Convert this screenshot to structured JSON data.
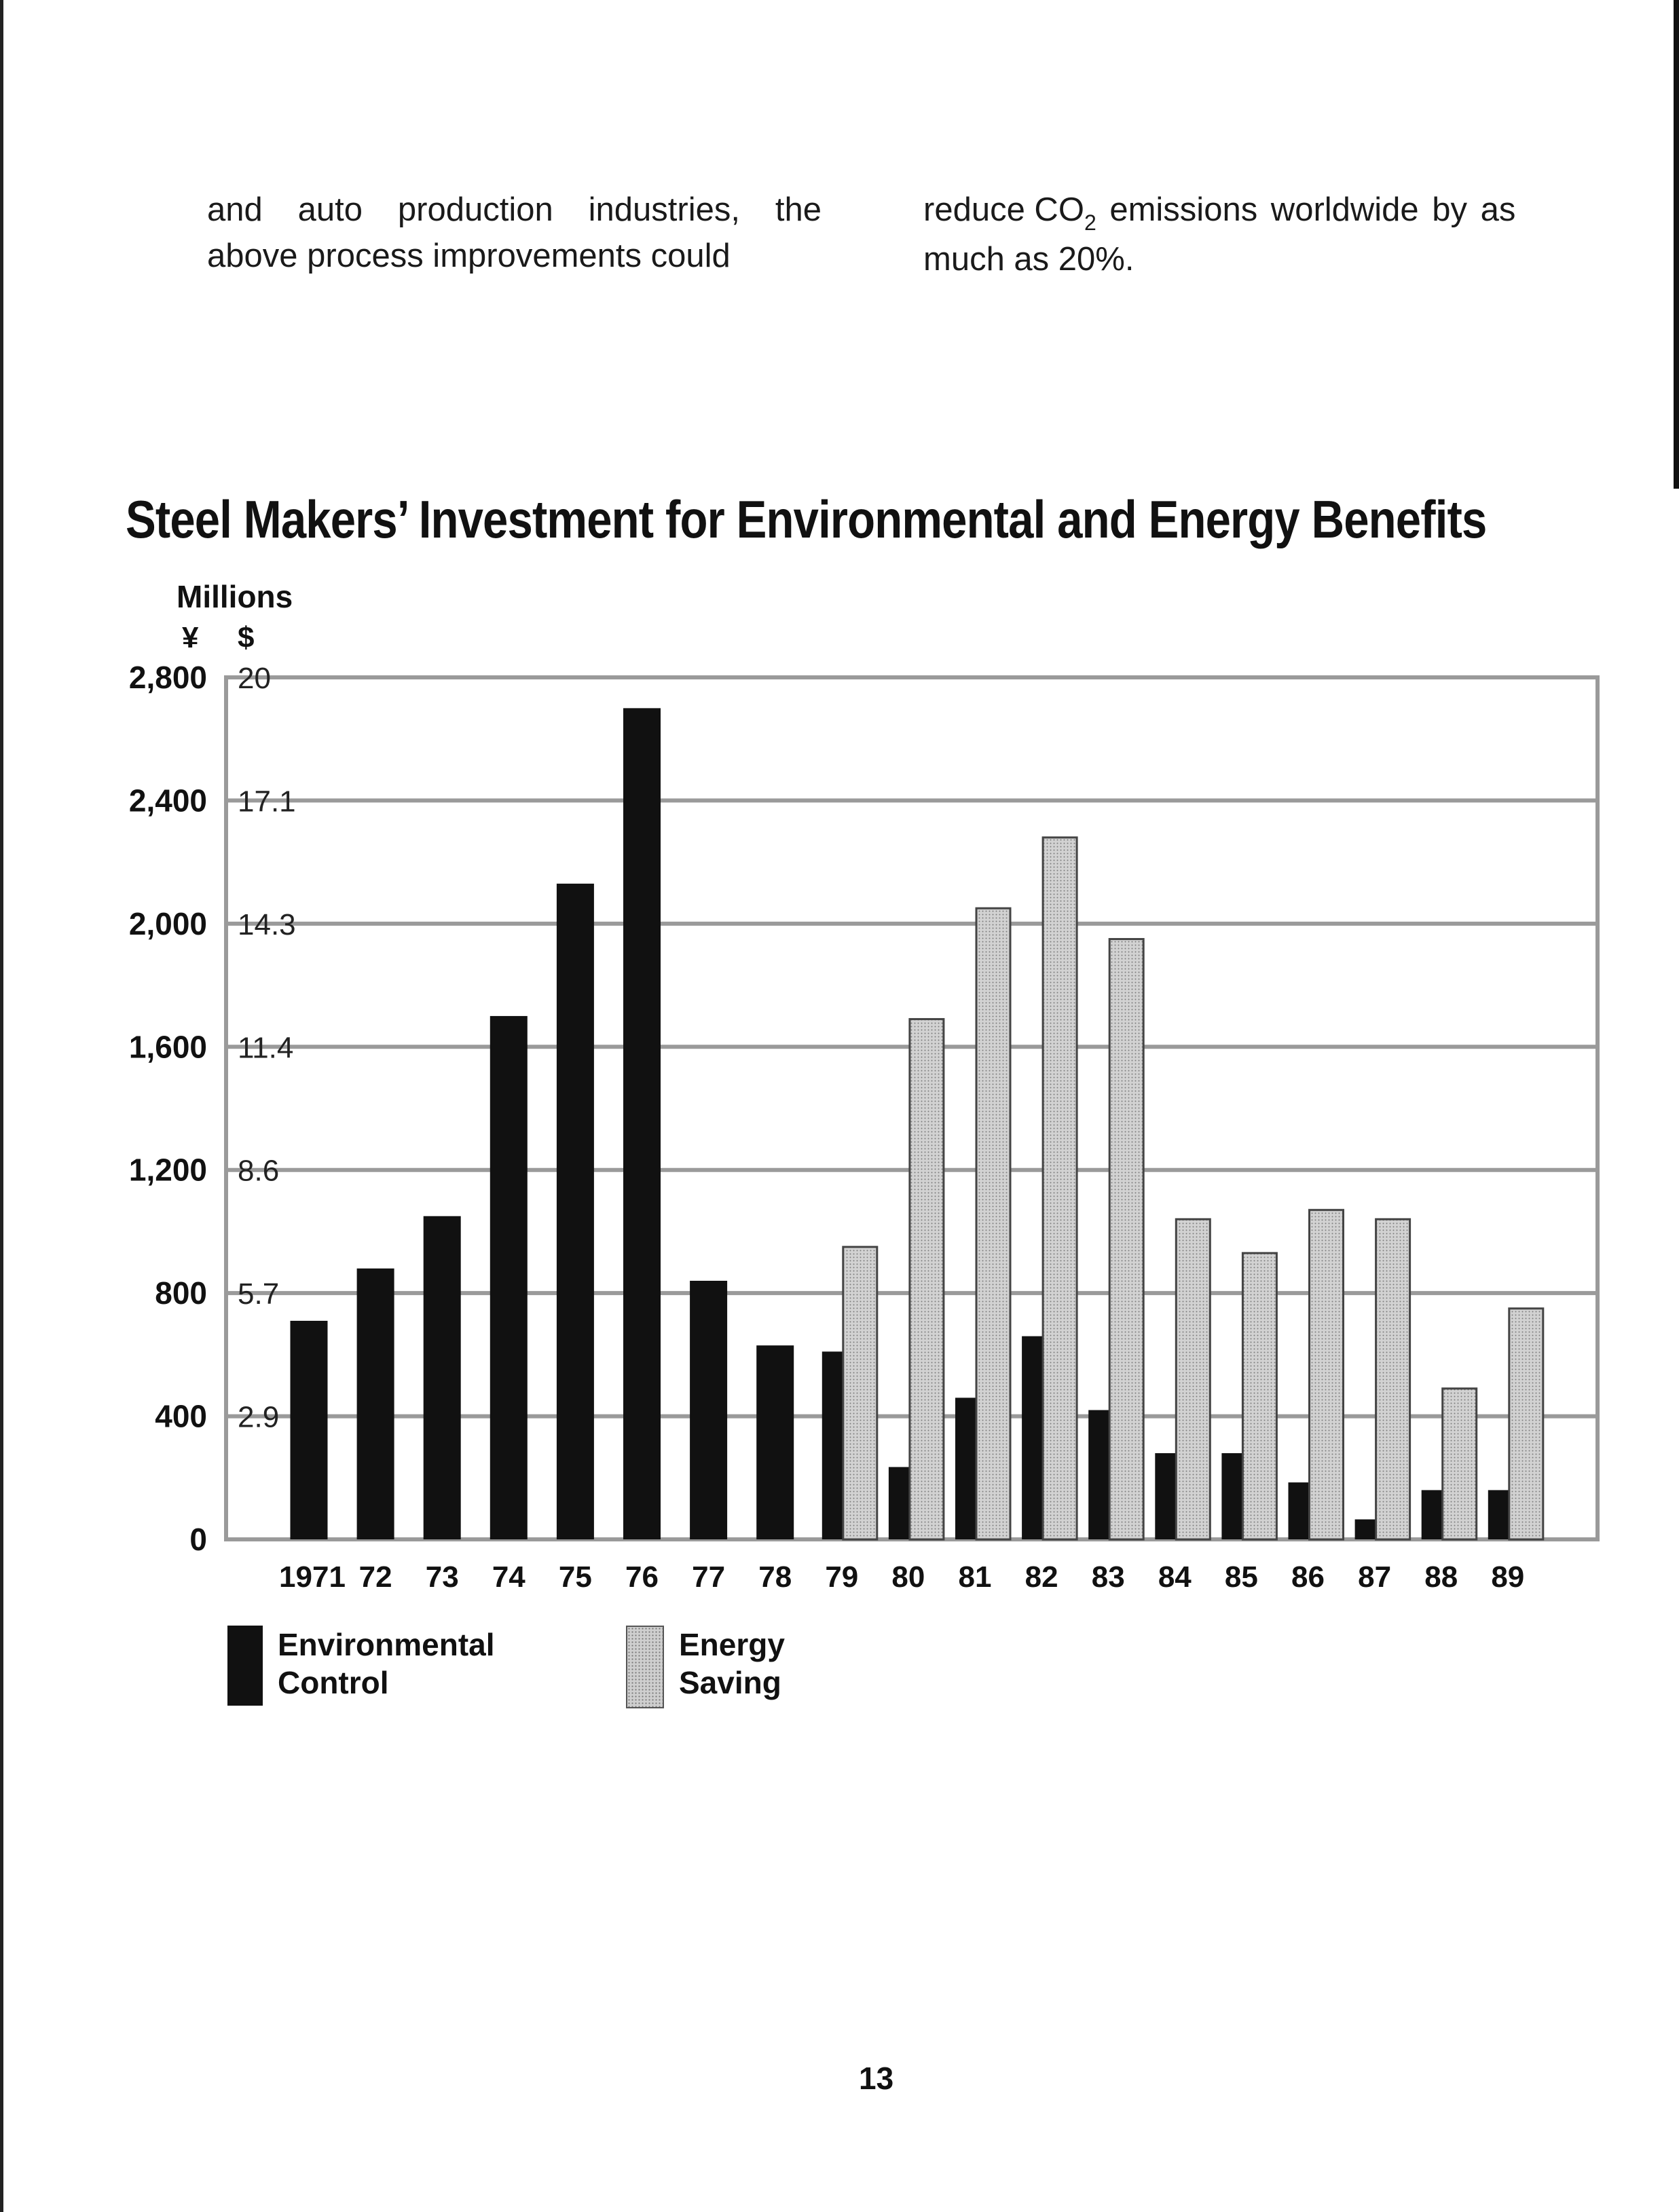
{
  "body_text": {
    "left_column": [
      "and auto production industries, the",
      "above process improvements could"
    ],
    "right_column_line1_pre": "reduce CO",
    "right_column_line1_sub": "2",
    "right_column_line1_post": " emissions worldwide by as",
    "right_column_line2": "much as 20%."
  },
  "page_number": "13",
  "chart_data": {
    "type": "bar",
    "title": "Steel Makers’ Investment for Environmental and Energy Benefits",
    "units_label": "Millions",
    "currency_left": "¥",
    "currency_right": "$",
    "xlabel": "",
    "ylabel": "Millions",
    "ylim": [
      0,
      2800
    ],
    "grid": true,
    "y_ticks_yen": [
      "0",
      "400",
      "800",
      "1,200",
      "1,600",
      "2,000",
      "2,400",
      "2,800"
    ],
    "y_ticks_yen_values": [
      0,
      400,
      800,
      1200,
      1600,
      2000,
      2400,
      2800
    ],
    "y_ticks_usd": [
      "",
      "2.9",
      "5.7",
      "8.6",
      "11.4",
      "14.3",
      "17.1",
      "20"
    ],
    "categories": [
      "1971",
      "72",
      "73",
      "74",
      "75",
      "76",
      "77",
      "78",
      "79",
      "80",
      "81",
      "82",
      "83",
      "84",
      "85",
      "86",
      "87",
      "88",
      "89"
    ],
    "series": [
      {
        "name": "Environmental Control",
        "values": [
          710,
          880,
          1050,
          1700,
          2130,
          2700,
          840,
          630,
          610,
          235,
          460,
          660,
          420,
          280,
          280,
          185,
          65,
          160,
          160
        ]
      },
      {
        "name": "Energy Saving",
        "values": [
          0,
          0,
          0,
          0,
          0,
          0,
          0,
          0,
          950,
          1690,
          2050,
          2280,
          1950,
          1040,
          930,
          1070,
          1040,
          490,
          750
        ]
      }
    ],
    "legend": {
      "position": "bottom-left",
      "entries": [
        "Environmental\nControl",
        "Energy\nSaving"
      ]
    },
    "colors": {
      "environmental": "#111111",
      "energy": "#cccccc",
      "grid": "#9a9a9a"
    }
  }
}
